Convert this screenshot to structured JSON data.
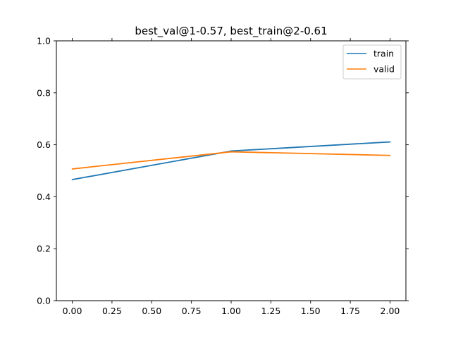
{
  "chart_data": {
    "type": "line",
    "title": "best_val@1-0.57, best_train@2-0.61",
    "xlabel": "",
    "ylabel": "",
    "xlim": [
      -0.1,
      2.1
    ],
    "ylim": [
      0.0,
      1.0
    ],
    "xticks": [
      0.0,
      0.25,
      0.5,
      0.75,
      1.0,
      1.25,
      1.5,
      1.75,
      2.0
    ],
    "xtick_labels": [
      "0.00",
      "0.25",
      "0.50",
      "0.75",
      "1.00",
      "1.25",
      "1.50",
      "1.75",
      "2.00"
    ],
    "yticks": [
      0.0,
      0.2,
      0.4,
      0.6,
      0.8,
      1.0
    ],
    "ytick_labels": [
      "0.0",
      "0.2",
      "0.4",
      "0.6",
      "0.8",
      "1.0"
    ],
    "grid": false,
    "legend_position": "top-right",
    "series": [
      {
        "name": "train",
        "color": "#1f77b4",
        "x": [
          0,
          1,
          2
        ],
        "y": [
          0.466,
          0.576,
          0.611
        ]
      },
      {
        "name": "valid",
        "color": "#ff7f0e",
        "x": [
          0,
          1,
          2
        ],
        "y": [
          0.507,
          0.573,
          0.559
        ]
      }
    ]
  }
}
